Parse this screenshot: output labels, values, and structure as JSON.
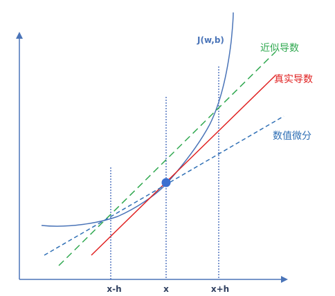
{
  "labels": {
    "curve": "J(w,b)",
    "approx": "近似导数",
    "true": "真实导数",
    "numeric": "数值微分",
    "x_minus_h": "x-h",
    "x": "x",
    "x_plus_h": "x+h"
  },
  "colors": {
    "axis": "#4a74b8",
    "curve": "#4a74b8",
    "approx": "#2fa84f",
    "true": "#e02020",
    "numeric": "#2f6fb5",
    "guide": "#2a55b0",
    "point": "#3a6fd0"
  }
}
